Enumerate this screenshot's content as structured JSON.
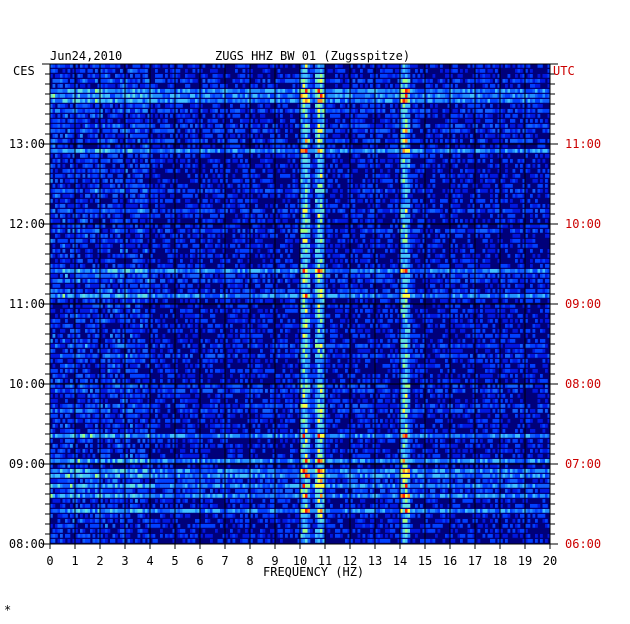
{
  "header": {
    "date": "Jun24,2010",
    "station": "ZUGS HHZ BW 01 (Zugsspitze)",
    "left_tz": "CES",
    "right_tz": "UTC"
  },
  "footer_mark": "*",
  "colors": {
    "grid": "#000000",
    "utc_text": "#cc0000",
    "background": "#00007a"
  },
  "chart_data": {
    "type": "heatmap",
    "title": "ZUGS HHZ BW 01 (Zugsspitze)",
    "date": "Jun24,2010",
    "xlabel": "FREQUENCY (HZ)",
    "xlim": [
      0,
      20
    ],
    "x_ticks": [
      0,
      1,
      2,
      3,
      4,
      5,
      6,
      7,
      8,
      9,
      10,
      11,
      12,
      13,
      14,
      15,
      16,
      17,
      18,
      19,
      20
    ],
    "y_local_ticks": [
      "08:00",
      "09:00",
      "10:00",
      "11:00",
      "12:00",
      "13:00"
    ],
    "y_utc_ticks": [
      "06:00",
      "07:00",
      "08:00",
      "09:00",
      "10:00",
      "11:00"
    ],
    "y_local_range": [
      "08:00",
      "14:00"
    ],
    "grid": true,
    "dominant_frequency_bands_hz": [
      10.2,
      10.8,
      14.2
    ]
  }
}
